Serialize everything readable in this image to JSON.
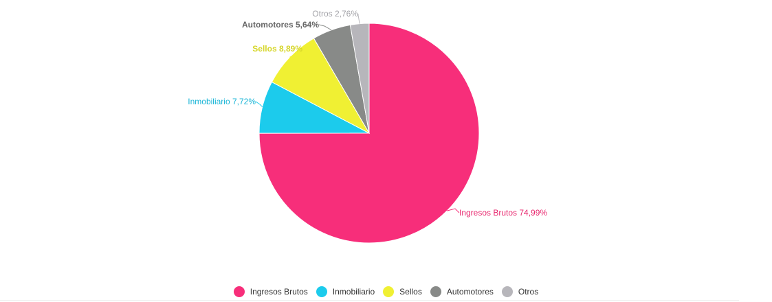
{
  "chart_data": {
    "type": "pie",
    "slices": [
      {
        "name": "Ingresos Brutos",
        "value": 74.99,
        "label": "Ingresos Brutos 74,99%",
        "color": "#f72e7a",
        "label_color": "#e8296f",
        "bold": false
      },
      {
        "name": "Inmobiliario",
        "value": 7.72,
        "label": "Inmobiliario 7,72%",
        "color": "#1ccbec",
        "label_color": "#17b4d6",
        "bold": false
      },
      {
        "name": "Sellos",
        "value": 8.89,
        "label": "Sellos 8,89%",
        "color": "#f0f033",
        "label_color": "#d6d62a",
        "bold": true
      },
      {
        "name": "Automotores",
        "value": 5.64,
        "label": "Automotores 5,64%",
        "color": "#888a88",
        "label_color": "#666666",
        "bold": true
      },
      {
        "name": "Otros",
        "value": 2.76,
        "label": "Otros 2,76%",
        "color": "#b7b6bb",
        "label_color": "#a3a3a8",
        "bold": false
      }
    ],
    "start_angle_deg": 0,
    "direction": "clockwise",
    "legend_position": "bottom-center"
  }
}
